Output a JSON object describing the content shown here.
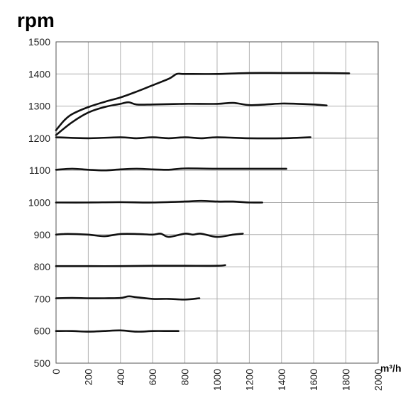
{
  "chart_data": {
    "type": "line",
    "ylabel": "rpm",
    "xlabel": "m³/h",
    "xlim": [
      0,
      2000
    ],
    "ylim": [
      500,
      1500
    ],
    "xticks": [
      "0",
      "200",
      "400",
      "600",
      "800",
      "1000",
      "1200",
      "1400",
      "1600",
      "1800",
      "2000"
    ],
    "yticks": [
      "500",
      "600",
      "700",
      "800",
      "900",
      "1000",
      "1100",
      "1200",
      "1300",
      "1400",
      "1500"
    ],
    "grid": true,
    "legend": "none",
    "series": [
      {
        "x": [
          0,
          100,
          200,
          300,
          400,
          500,
          600,
          700,
          760
        ],
        "y": [
          600,
          600,
          598,
          600,
          602,
          598,
          600,
          600,
          600
        ]
      },
      {
        "x": [
          0,
          100,
          200,
          300,
          400,
          450,
          500,
          600,
          700,
          800,
          890
        ],
        "y": [
          702,
          703,
          702,
          702,
          703,
          708,
          705,
          700,
          700,
          698,
          702
        ]
      },
      {
        "x": [
          0,
          200,
          400,
          600,
          800,
          1000,
          1050
        ],
        "y": [
          802,
          802,
          802,
          803,
          803,
          803,
          805
        ]
      },
      {
        "x": [
          0,
          50,
          100,
          200,
          300,
          400,
          500,
          600,
          650,
          700,
          800,
          850,
          900,
          1000,
          1100,
          1160
        ],
        "y": [
          900,
          902,
          902,
          900,
          895,
          902,
          902,
          900,
          903,
          893,
          903,
          900,
          903,
          893,
          900,
          903
        ]
      },
      {
        "x": [
          0,
          200,
          400,
          600,
          800,
          900,
          1000,
          1100,
          1200,
          1280
        ],
        "y": [
          1000,
          1000,
          1001,
          1000,
          1003,
          1005,
          1003,
          1003,
          1000,
          1000
        ]
      },
      {
        "x": [
          0,
          100,
          200,
          300,
          400,
          500,
          600,
          700,
          800,
          1000,
          1200,
          1400,
          1430
        ],
        "y": [
          1102,
          1105,
          1102,
          1100,
          1103,
          1105,
          1103,
          1102,
          1106,
          1105,
          1105,
          1105,
          1105
        ]
      },
      {
        "x": [
          0,
          200,
          400,
          500,
          600,
          700,
          800,
          900,
          1000,
          1200,
          1400,
          1580
        ],
        "y": [
          1203,
          1200,
          1203,
          1200,
          1203,
          1200,
          1203,
          1200,
          1203,
          1200,
          1200,
          1203
        ]
      },
      {
        "x": [
          0,
          100,
          200,
          300,
          400,
          450,
          500,
          600,
          800,
          1000,
          1100,
          1200,
          1300,
          1400,
          1500,
          1600,
          1680
        ],
        "y": [
          1210,
          1250,
          1280,
          1297,
          1307,
          1312,
          1305,
          1305,
          1307,
          1307,
          1310,
          1303,
          1305,
          1308,
          1307,
          1305,
          1302
        ]
      },
      {
        "x": [
          0,
          50,
          100,
          200,
          300,
          400,
          500,
          600,
          700,
          750,
          800,
          1000,
          1200,
          1400,
          1600,
          1820
        ],
        "y": [
          1225,
          1255,
          1275,
          1297,
          1313,
          1327,
          1345,
          1365,
          1385,
          1400,
          1400,
          1400,
          1403,
          1403,
          1403,
          1402
        ]
      }
    ]
  }
}
